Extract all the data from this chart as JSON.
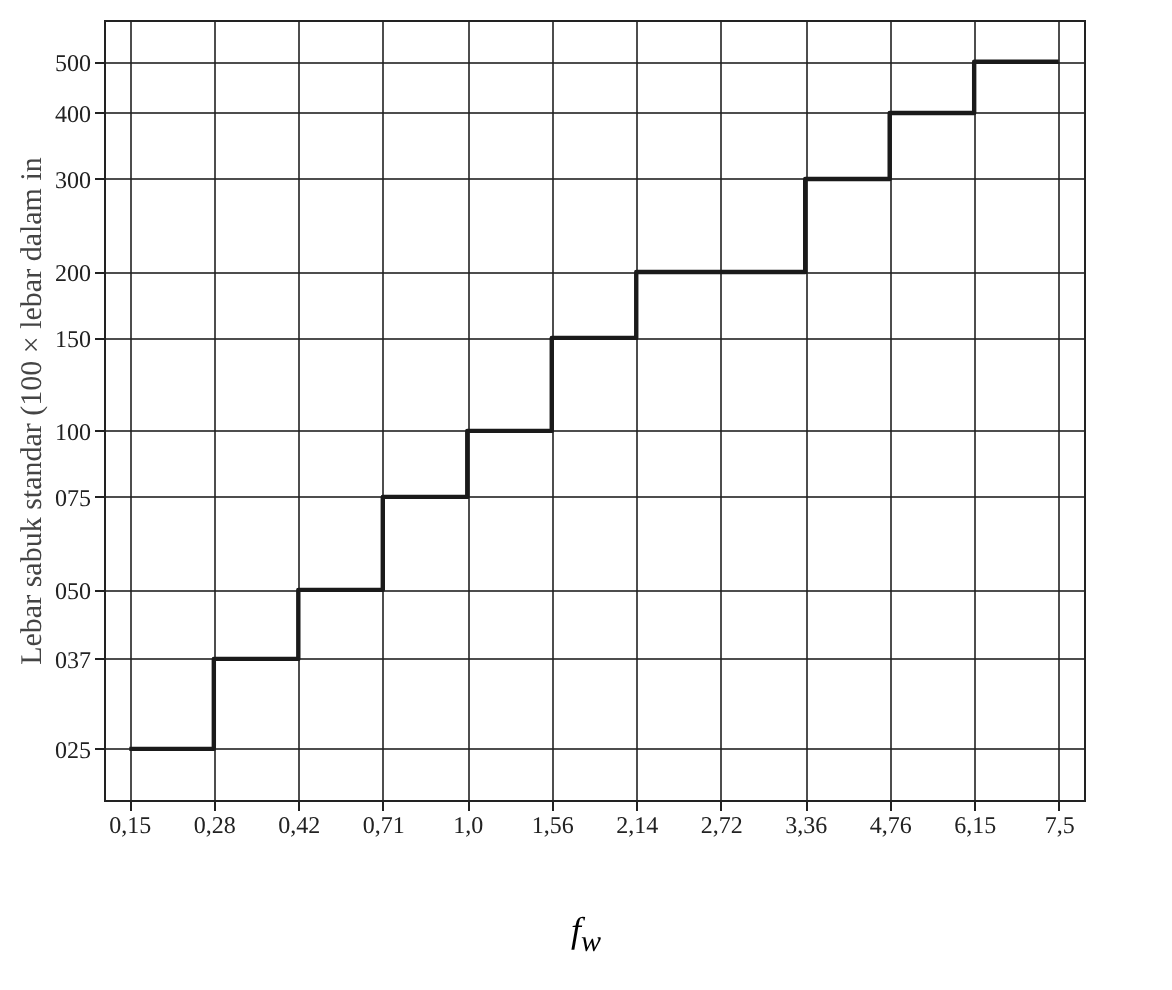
{
  "chart_data": {
    "type": "step",
    "xlabel": "f$_{w}$",
    "ylabel": "Lebar sabuk standar (100 × lebar dalam in",
    "categories": [
      "0,15",
      "0,28",
      "0,42",
      "0,71",
      "1,0",
      "1,56",
      "2,14",
      "2,72",
      "3,36",
      "4,76",
      "6,15",
      "7,5"
    ],
    "series": [
      {
        "color": "#1a1a1a",
        "values": [
          25,
          37,
          50,
          75,
          100,
          150,
          200,
          200,
          300,
          400,
          500,
          500
        ]
      }
    ],
    "log": "y",
    "ylim": [
      20,
      600
    ],
    "yticks": [
      {
        "value": 25,
        "label": "025"
      },
      {
        "value": 37,
        "label": "037"
      },
      {
        "value": 50,
        "label": "050"
      },
      {
        "value": 75,
        "label": "075"
      },
      {
        "value": 100,
        "label": "100"
      },
      {
        "value": 150,
        "label": "150"
      },
      {
        "value": 200,
        "label": "200"
      },
      {
        "value": 300,
        "label": "300"
      },
      {
        "value": 400,
        "label": "400"
      },
      {
        "value": 500,
        "label": "500"
      }
    ],
    "grid": true,
    "marker": "none",
    "line_style": "solid"
  }
}
